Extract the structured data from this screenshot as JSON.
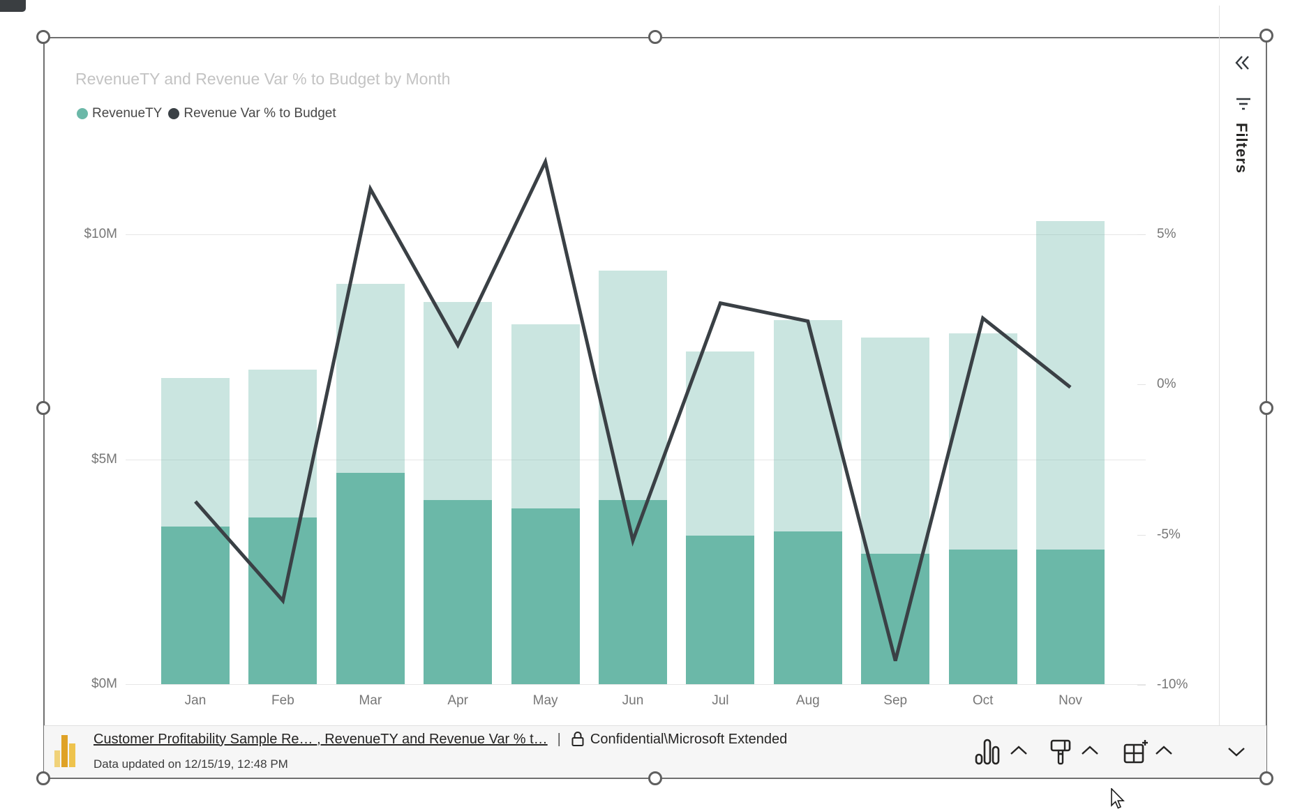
{
  "colors": {
    "bar": "#6BB8A8",
    "bar_dim_rgba": "rgba(107,184,168,0.36)",
    "line": "#3A4045",
    "title_gray": "#C3C3C3",
    "axis_gray": "#767676",
    "icon_dark": "#252423",
    "selection_gray": "#6F6F6F",
    "footer_bg": "#F6F6F6",
    "logo_gold": "#F2C811"
  },
  "visual": {
    "title": "RevenueTY and Revenue Var % to Budget by Month",
    "legend": [
      {
        "label": "RevenueTY",
        "color": "#6BB8A8"
      },
      {
        "label": "Revenue Var % to Budget",
        "color": "#3A4045"
      }
    ]
  },
  "chart_data": {
    "type": "combo: stacked column + line",
    "title": "RevenueTY and Revenue Var % to Budget by Month",
    "legend_position": "top-left",
    "grid": "horizontal gridlines for left axis only",
    "categories": [
      "Jan",
      "Feb",
      "Mar",
      "Apr",
      "May",
      "Jun",
      "Jul",
      "Aug",
      "Sep",
      "Oct",
      "Nov"
    ],
    "series": [
      {
        "name": "RevenueTY total ($M)",
        "type": "column-dim",
        "values": [
          6.8,
          7.0,
          8.9,
          8.5,
          8.0,
          9.2,
          7.4,
          8.1,
          7.7,
          7.8,
          10.3
        ]
      },
      {
        "name": "RevenueTY highlighted ($M)",
        "type": "column",
        "values": [
          3.5,
          3.7,
          4.7,
          4.1,
          3.9,
          4.1,
          3.3,
          3.4,
          2.9,
          3.0,
          3.0
        ]
      },
      {
        "name": "Revenue Var % to Budget (%)",
        "type": "line",
        "values": [
          -3.9,
          -7.2,
          6.5,
          1.3,
          7.4,
          -5.2,
          2.7,
          2.1,
          -9.2,
          2.2,
          -0.1
        ]
      }
    ],
    "y_left": {
      "range": [
        0,
        10.5
      ],
      "ticks": [
        {
          "value": 0,
          "label": "$0M"
        },
        {
          "value": 5,
          "label": "$5M"
        },
        {
          "value": 10,
          "label": "$10M"
        }
      ]
    },
    "y_right": {
      "range": [
        -10.5,
        7.5
      ],
      "ticks": [
        {
          "value": 5,
          "label": "5%"
        },
        {
          "value": 0,
          "label": "0%"
        },
        {
          "value": -5,
          "label": "-5%"
        },
        {
          "value": -10,
          "label": "-10%"
        }
      ]
    }
  },
  "footer": {
    "link_label": "Customer Profitability Sample Re… , RevenueTY and Revenue Var % t…",
    "separator": "|",
    "sensitivity_label": "Confidential\\Microsoft Extended",
    "updated_text": "Data updated on 12/15/19, 12:48 PM",
    "toolbar_icons": [
      "column-chart",
      "chevron-up",
      "paint-roller",
      "chevron-up",
      "build-visual",
      "chevron-up",
      "chevron-down"
    ]
  },
  "filters_pane": {
    "label": "Filters"
  }
}
